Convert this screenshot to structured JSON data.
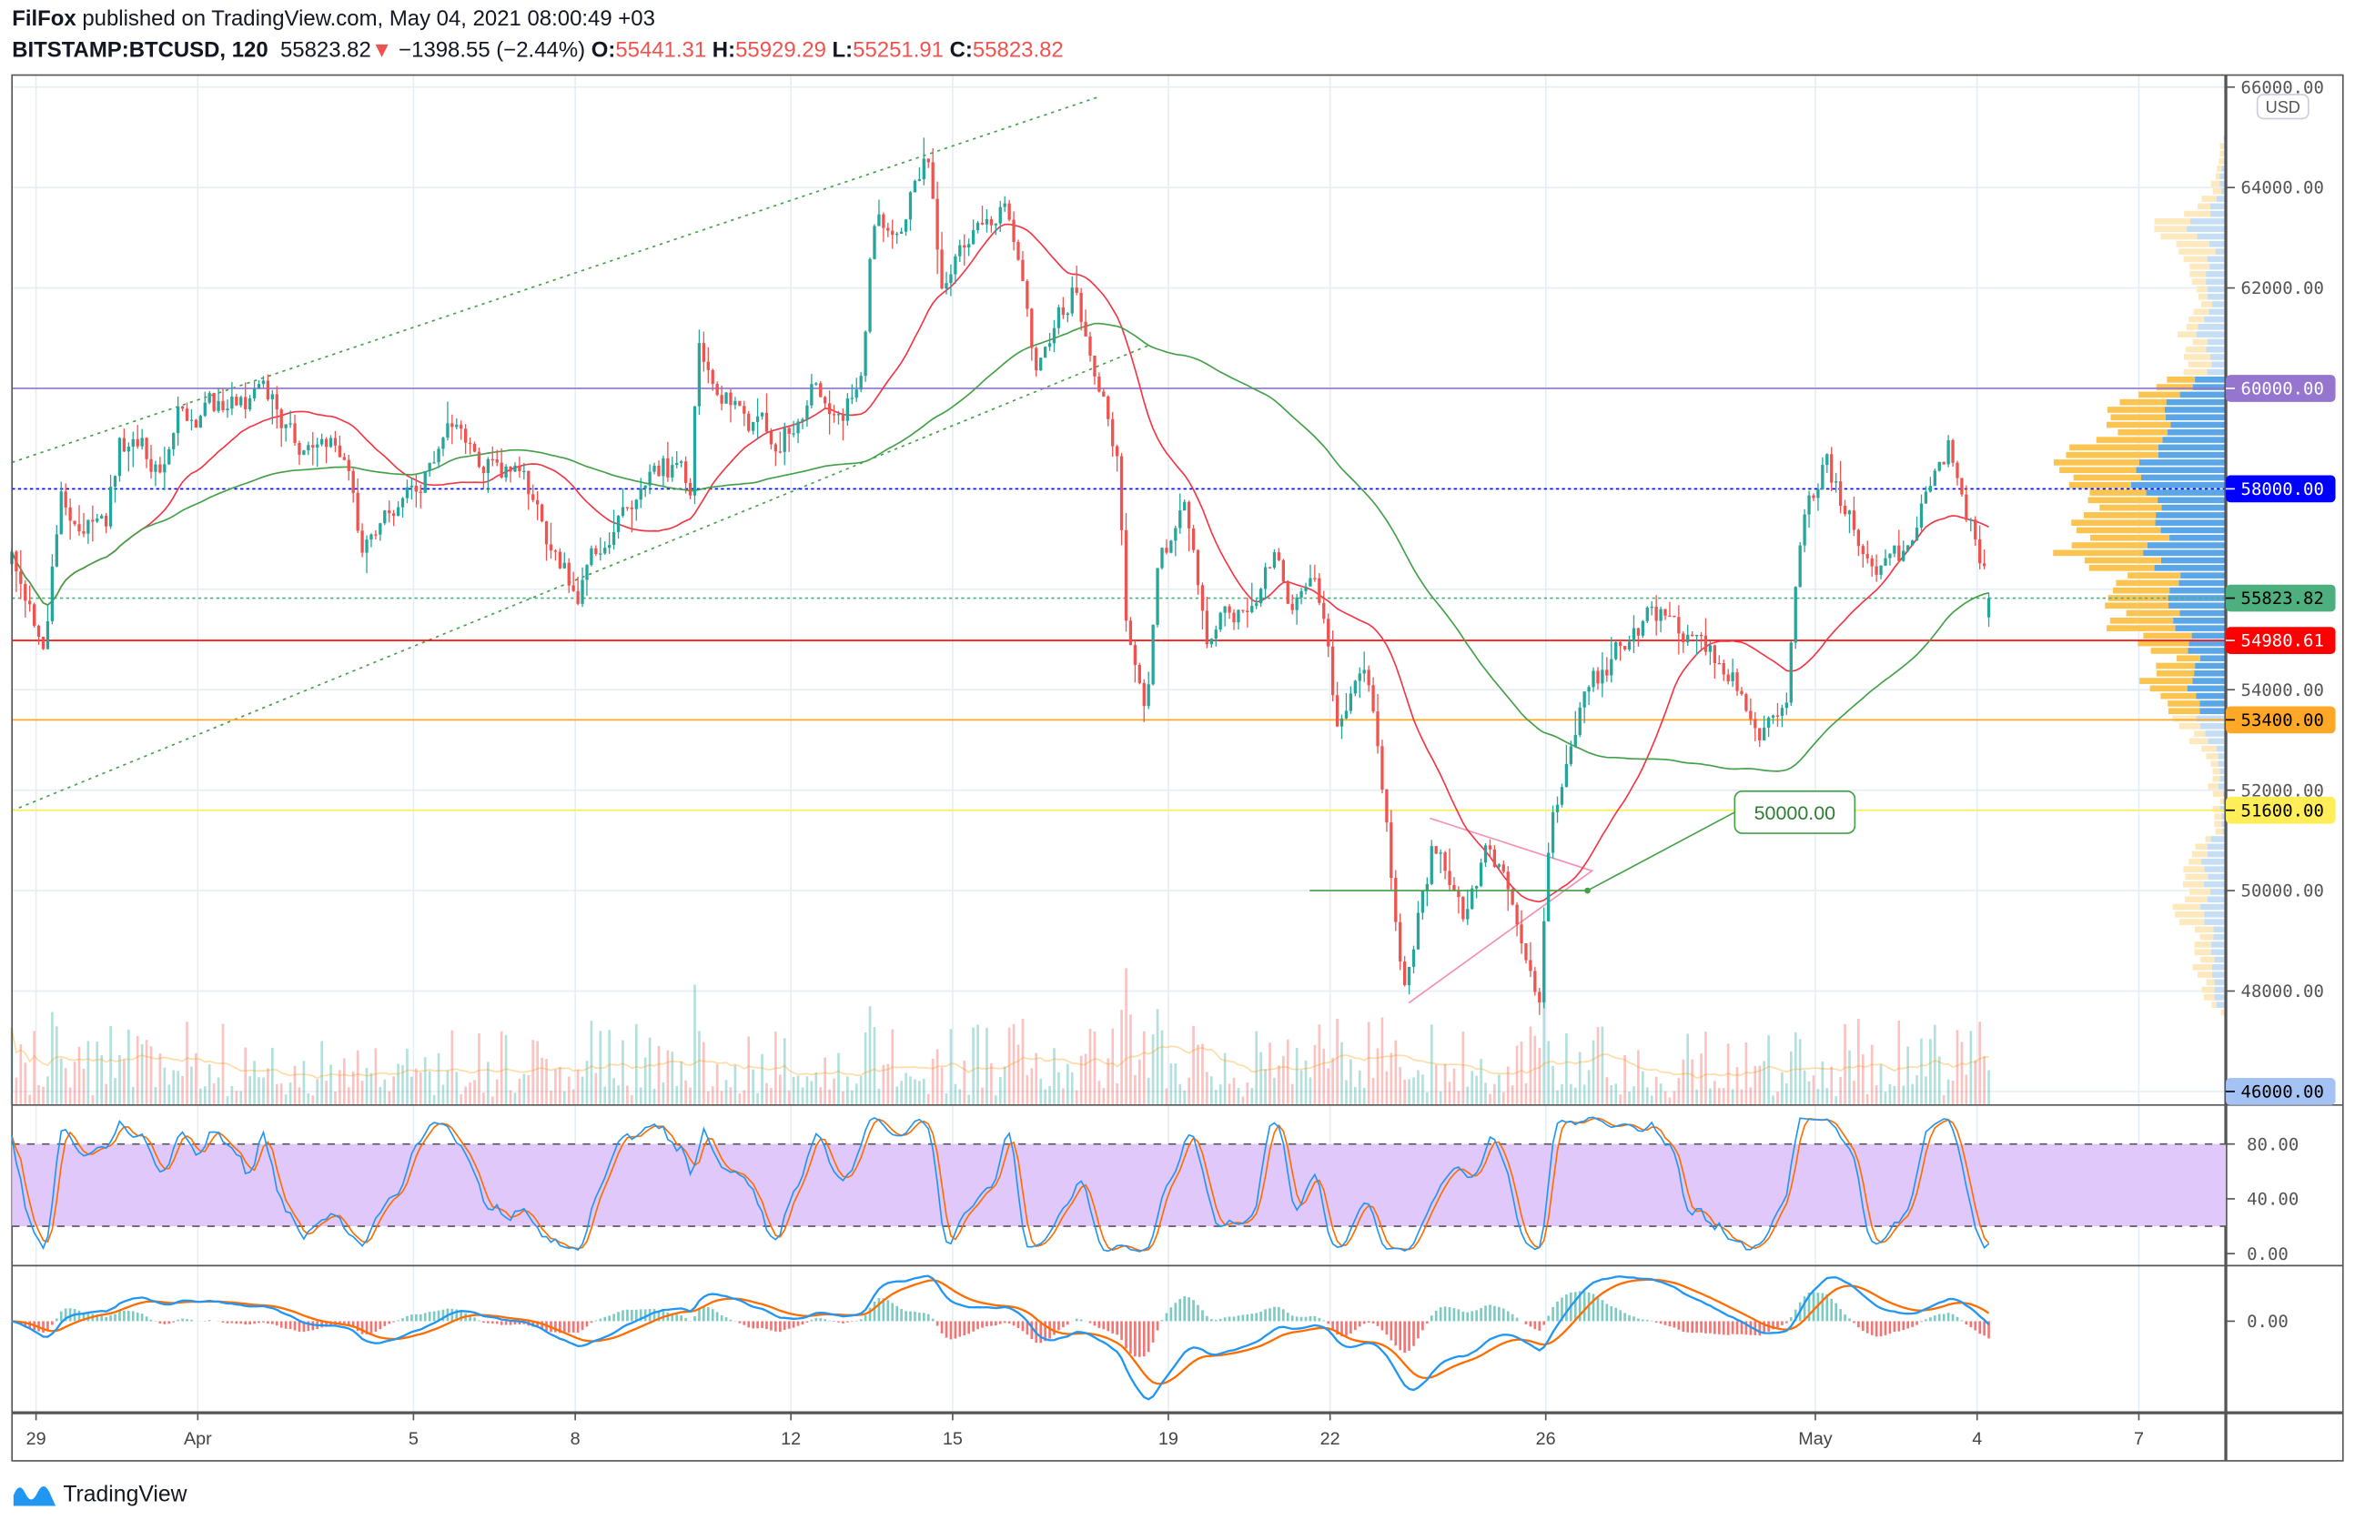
{
  "header": {
    "author": "FilFox",
    "published": "published on TradingView.com, May 04, 2021 08:00:49 +03",
    "symbol": "BITSTAMP:BTCUSD, 120",
    "last": "55823.82",
    "change_icon": "triangle-down-icon",
    "change": "−1398.55 (−2.44%)",
    "o_label": "O:",
    "o": "55441.31",
    "h_label": "H:",
    "h": "55929.29",
    "l_label": "L:",
    "l": "55251.91",
    "c_label": "C:",
    "c": "55823.82"
  },
  "price_axis": {
    "currency": "USD",
    "ticks": [
      "66000.00",
      "64000.00",
      "62000.00",
      "54000.00",
      "52000.00",
      "50000.00",
      "48000.00"
    ]
  },
  "levels": [
    {
      "label": "60000.00",
      "price": 60000,
      "color": "#9575cd",
      "text_color": "#ffffff",
      "style": "solid"
    },
    {
      "label": "58000.00",
      "price": 58000,
      "color": "#0000ff",
      "text_color": "#ffffff",
      "style": "dotted"
    },
    {
      "label": "55823.82",
      "price": 55823.82,
      "color": "#4caf7d",
      "text_color": "#000000",
      "style": "dotted"
    },
    {
      "label": "54980.61",
      "price": 54980.61,
      "color": "#ff0000",
      "text_color": "#ffffff",
      "style": "solid"
    },
    {
      "label": "53400.00",
      "price": 53400,
      "color": "#ffa726",
      "text_color": "#000000",
      "style": "solid"
    },
    {
      "label": "51600.00",
      "price": 51600,
      "color": "#ffee58",
      "text_color": "#000000",
      "style": "solid"
    },
    {
      "label": "46000.00",
      "price": 46000,
      "color": "#a4c2f4",
      "text_color": "#000000",
      "style": "none"
    }
  ],
  "annotation": {
    "label": "50000.00",
    "price": 50000
  },
  "stoch_axis": {
    "ticks": [
      "80.00",
      "40.00",
      "0.00"
    ]
  },
  "macd_axis": {
    "ticks": [
      "0.00"
    ]
  },
  "time_axis": {
    "labels": [
      {
        "label": "29",
        "day": 0
      },
      {
        "label": "Apr",
        "day": 3
      },
      {
        "label": "5",
        "day": 7
      },
      {
        "label": "8",
        "day": 10
      },
      {
        "label": "12",
        "day": 14
      },
      {
        "label": "15",
        "day": 17
      },
      {
        "label": "19",
        "day": 21
      },
      {
        "label": "22",
        "day": 24
      },
      {
        "label": "26",
        "day": 28
      },
      {
        "label": "May",
        "day": 33
      },
      {
        "label": "4",
        "day": 36
      },
      {
        "label": "7",
        "day": 39
      }
    ]
  },
  "footer": {
    "brand": "TradingView"
  },
  "colors": {
    "up": "#26a69a",
    "down": "#ef5350",
    "ma_fast": "#f23645",
    "ma_slow": "#43a047",
    "stoch_k": "#2196f3",
    "stoch_d": "#ff6d00",
    "band": "#e1c8fa"
  },
  "chart_data": {
    "type": "candlestick",
    "title": "BITSTAMP:BTCUSD, 120",
    "interval_minutes": 120,
    "x_unit": "days since Mar 29, 2021",
    "ylim": [
      46000,
      66000
    ],
    "close_path": [
      [
        -0.45,
        56500
      ],
      [
        0.17,
        55000
      ],
      [
        0.45,
        57800
      ],
      [
        1.28,
        57000
      ],
      [
        1.56,
        59000
      ],
      [
        2.4,
        58500
      ],
      [
        2.67,
        59500
      ],
      [
        4.2,
        59800
      ],
      [
        4.9,
        59000
      ],
      [
        5.74,
        58800
      ],
      [
        6.02,
        57000
      ],
      [
        6.57,
        57500
      ],
      [
        7.13,
        58000
      ],
      [
        7.69,
        59000
      ],
      [
        8.52,
        58500
      ],
      [
        9.08,
        58000
      ],
      [
        9.64,
        56500
      ],
      [
        10.06,
        56000
      ],
      [
        10.75,
        57500
      ],
      [
        11.59,
        58500
      ],
      [
        12.14,
        58000
      ],
      [
        12.28,
        61000
      ],
      [
        12.98,
        59500
      ],
      [
        13.82,
        59000
      ],
      [
        14.37,
        60000
      ],
      [
        14.93,
        59500
      ],
      [
        15.35,
        60500
      ],
      [
        15.49,
        63000
      ],
      [
        16.04,
        63500
      ],
      [
        16.55,
        64500
      ],
      [
        16.82,
        62000
      ],
      [
        17.16,
        63000
      ],
      [
        17.94,
        63500
      ],
      [
        18.55,
        60500
      ],
      [
        19.25,
        62000
      ],
      [
        19.81,
        60000
      ],
      [
        20.08,
        58500
      ],
      [
        20.22,
        55500
      ],
      [
        20.58,
        53500
      ],
      [
        20.78,
        56500
      ],
      [
        21.34,
        57500
      ],
      [
        21.75,
        55000
      ],
      [
        22.17,
        55500
      ],
      [
        22.73,
        56000
      ],
      [
        23.0,
        57000
      ],
      [
        23.29,
        55500
      ],
      [
        23.7,
        56500
      ],
      [
        24.12,
        53500
      ],
      [
        24.68,
        54500
      ],
      [
        24.96,
        52000
      ],
      [
        25.38,
        48000
      ],
      [
        25.93,
        51000
      ],
      [
        26.49,
        49500
      ],
      [
        26.91,
        50800
      ],
      [
        27.47,
        49500
      ],
      [
        27.88,
        48000
      ],
      [
        28.08,
        51500
      ],
      [
        28.58,
        53500
      ],
      [
        29.42,
        55000
      ],
      [
        29.97,
        55500
      ],
      [
        30.81,
        55000
      ],
      [
        31.64,
        54000
      ],
      [
        31.92,
        52800
      ],
      [
        32.48,
        54000
      ],
      [
        32.76,
        57500
      ],
      [
        33.18,
        58500
      ],
      [
        33.6,
        57500
      ],
      [
        34.15,
        56500
      ],
      [
        34.71,
        56500
      ],
      [
        35.13,
        58000
      ],
      [
        35.49,
        59000
      ],
      [
        35.82,
        57500
      ],
      [
        36.04,
        56800
      ],
      [
        36.27,
        55823.82
      ]
    ],
    "last_close": 55823.82,
    "indicators": [
      "MA fast",
      "MA slow",
      "Volume",
      "Volume Profile",
      "Stochastic RSI",
      "MACD"
    ]
  }
}
